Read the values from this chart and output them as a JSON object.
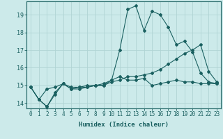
{
  "xlabel": "Humidex (Indice chaleur)",
  "background_color": "#cceaea",
  "grid_color": "#b0d4d4",
  "line_color": "#1a6060",
  "xlim": [
    -0.5,
    23.5
  ],
  "ylim": [
    13.7,
    19.75
  ],
  "yticks": [
    14,
    15,
    16,
    17,
    18,
    19
  ],
  "xticks": [
    0,
    1,
    2,
    3,
    4,
    5,
    6,
    7,
    8,
    9,
    10,
    11,
    12,
    13,
    14,
    15,
    16,
    17,
    18,
    19,
    20,
    21,
    22,
    23
  ],
  "line1_x": [
    0,
    1,
    2,
    3,
    4,
    5,
    6,
    7,
    8,
    9,
    10,
    11,
    12,
    13,
    14,
    15,
    16,
    17,
    18,
    19,
    20,
    21,
    22,
    23
  ],
  "line1_y": [
    14.9,
    14.2,
    13.8,
    14.6,
    15.1,
    14.8,
    14.9,
    14.9,
    15.0,
    15.0,
    15.3,
    15.5,
    15.3,
    15.3,
    15.4,
    15.0,
    15.1,
    15.2,
    15.3,
    15.2,
    15.2,
    15.1,
    15.1,
    15.1
  ],
  "line2_x": [
    0,
    1,
    2,
    3,
    4,
    5,
    6,
    7,
    8,
    9,
    10,
    11,
    12,
    13,
    14,
    15,
    16,
    17,
    18,
    19,
    20,
    21,
    22,
    23
  ],
  "line2_y": [
    14.9,
    14.2,
    14.8,
    14.9,
    15.1,
    14.9,
    14.9,
    15.0,
    15.0,
    15.1,
    15.3,
    17.0,
    19.3,
    19.5,
    18.1,
    19.2,
    19.0,
    18.3,
    17.3,
    17.5,
    16.9,
    15.7,
    15.2,
    15.1
  ],
  "line3_x": [
    0,
    1,
    2,
    3,
    4,
    5,
    6,
    7,
    8,
    9,
    10,
    11,
    12,
    13,
    14,
    15,
    16,
    17,
    18,
    19,
    20,
    21,
    22,
    23
  ],
  "line3_y": [
    14.9,
    14.2,
    13.8,
    14.5,
    15.1,
    14.8,
    14.8,
    14.9,
    15.0,
    15.0,
    15.2,
    15.3,
    15.5,
    15.5,
    15.6,
    15.7,
    15.9,
    16.2,
    16.5,
    16.8,
    17.0,
    17.3,
    15.8,
    15.2
  ],
  "tick_fontsize": 5.5,
  "xlabel_fontsize": 6.5,
  "marker_size": 2.0,
  "line_width": 0.8
}
